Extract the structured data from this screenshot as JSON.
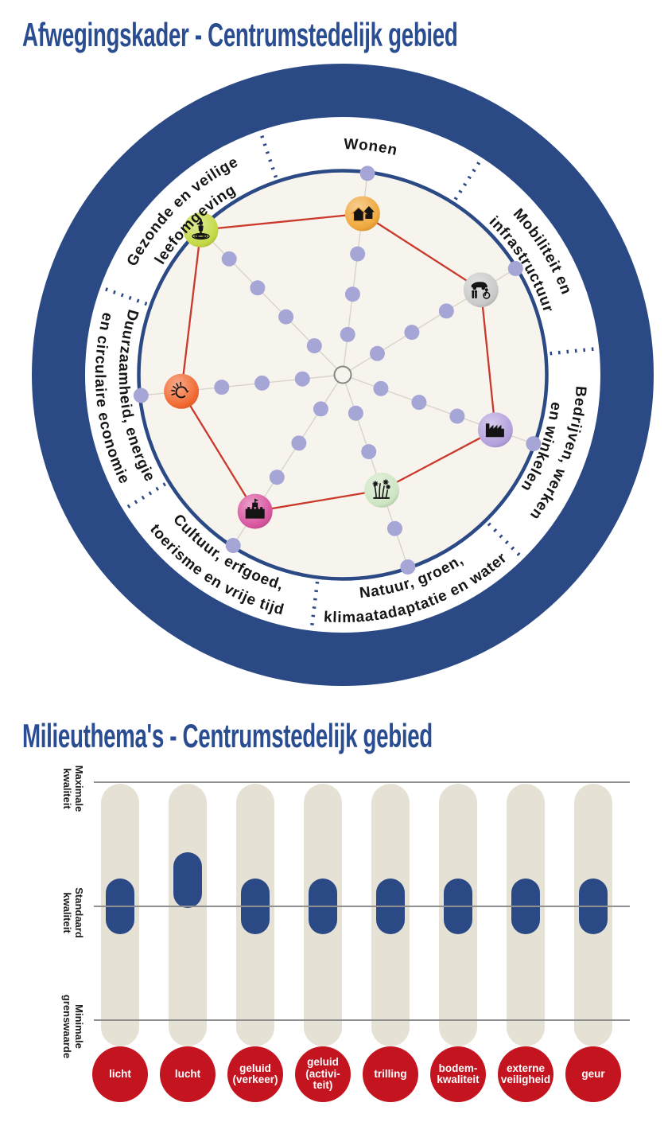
{
  "colors": {
    "title_blue": "#2a4c91",
    "navy": "#2b4a85",
    "inner_background": "#f7f4ee",
    "axis_line": "#d8d4cb",
    "dot_lavender": "#a5a5d6",
    "red_polygon": "#c9382a",
    "icon_glyph": "#141414",
    "ring_label_text": "#151515",
    "track_beige": "#e5e1d5",
    "pill_navy": "#2b4a85",
    "reference_line_gray": "#8f8f8f",
    "category_circle_red": "#c4141f",
    "category_label_text": "#ffffff",
    "y_label_text": "#1d1d1d"
  },
  "chart_data": [
    {
      "type": "radar-wheel",
      "title": "Afwegingskader - Centrumstedelijk gebied",
      "scale": {
        "min": 1,
        "max": 5,
        "dots_at_every_step": true
      },
      "legend_position": "labels-on-ring",
      "axes": [
        {
          "name": "Wonen",
          "label_lines": [
            "Wonen"
          ],
          "value": 4,
          "icon": "houses",
          "icon_color": "#f0a73c",
          "label_direction": "clockwise"
        },
        {
          "name": "Mobiliteit en infrastructuur",
          "label_lines": [
            "Mobiliteit en",
            "infrastructuur"
          ],
          "value": 4,
          "icon": "transport",
          "icon_color": "#c9c9c9",
          "label_direction": "clockwise"
        },
        {
          "name": "Bedrijven, werken en winkelen",
          "label_lines": [
            "Bedrijven, werken",
            "en winkelen"
          ],
          "value": 4,
          "icon": "factory",
          "icon_color": "#b3a0dc",
          "label_direction": "clockwise"
        },
        {
          "name": "Natuur, groen, klimaatadaptatie en water",
          "label_lines": [
            "Natuur, groen,",
            "klimaatadaptatie en water"
          ],
          "value": 3,
          "icon": "plants",
          "icon_color": "#cde5c2",
          "label_direction": "counterclockwise"
        },
        {
          "name": "Cultuur, erfgoed, toerisme en vrije tijd",
          "label_lines": [
            "Cultuur, erfgoed,",
            "toerisme en vrije tijd"
          ],
          "value": 4,
          "icon": "castle",
          "icon_color": "#d8549f",
          "label_direction": "counterclockwise"
        },
        {
          "name": "Duurzaamheid, energie en circulaire economie",
          "label_lines": [
            "Duurzaamheid, energie",
            "en circulaire economie"
          ],
          "value": 4,
          "icon": "renewable-energy",
          "icon_color": "#f2682f",
          "label_direction": "counterclockwise"
        },
        {
          "name": "Gezonde en veilige leefomgeving",
          "label_lines": [
            "Gezonde en veilige",
            "leefomgeving"
          ],
          "value": 5,
          "icon": "person-in-rings",
          "icon_color": "#c5d845",
          "label_direction": "clockwise"
        }
      ]
    },
    {
      "type": "quality-columns",
      "title": "Milieuthema's - Centrumstedelijk gebied",
      "y_reference_lines": [
        {
          "key": "max",
          "label_lines": [
            "Maximale",
            "kwaliteit"
          ]
        },
        {
          "key": "standaard",
          "label_lines": [
            "Standaard",
            "kwaliteit"
          ]
        },
        {
          "key": "min",
          "label_lines": [
            "Minimale",
            "grenswaarde"
          ]
        }
      ],
      "categories": [
        {
          "label": "licht",
          "label_lines": [
            "licht"
          ],
          "value": "standaard"
        },
        {
          "label": "lucht",
          "label_lines": [
            "lucht"
          ],
          "value": "boven standaard"
        },
        {
          "label": "geluid (verkeer)",
          "label_lines": [
            "geluid",
            "(verkeer)"
          ],
          "value": "standaard"
        },
        {
          "label": "geluid (activiteit)",
          "label_lines": [
            "geluid",
            "(activi-",
            "teit)"
          ],
          "value": "standaard"
        },
        {
          "label": "trilling",
          "label_lines": [
            "trilling"
          ],
          "value": "standaard"
        },
        {
          "label": "bodemkwaliteit",
          "label_lines": [
            "bodem-",
            "kwaliteit"
          ],
          "value": "standaard"
        },
        {
          "label": "externe veiligheid",
          "label_lines": [
            "externe",
            "veiligheid"
          ],
          "value": "standaard"
        },
        {
          "label": "geur",
          "label_lines": [
            "geur"
          ],
          "value": "standaard"
        }
      ]
    }
  ]
}
